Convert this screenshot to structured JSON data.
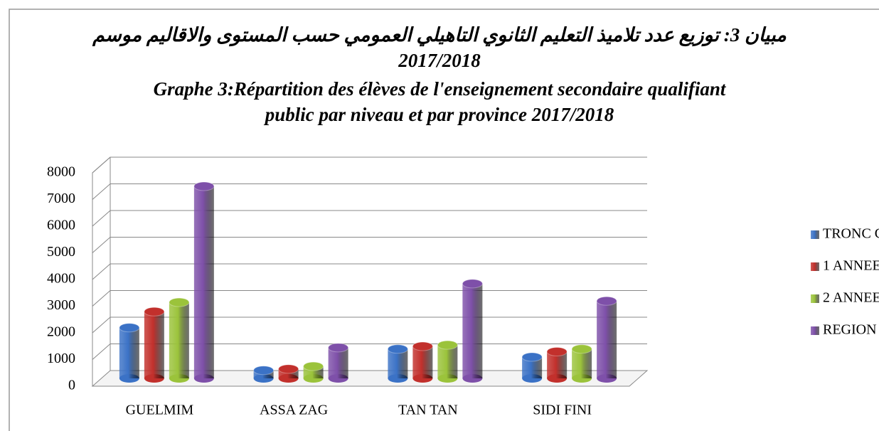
{
  "chart_data": {
    "type": "bar",
    "title": [
      "مبيان 3: توزيع عدد تلاميذ التعليم الثانوي التاهيلي العمومي حسب المستوى والاقاليم موسم",
      "2017/2018",
      "Graphe 3:Répartition des élèves de l'enseignement secondaire qualifiant",
      "public par niveau et par province 2017/2018"
    ],
    "categories": [
      "GUELMIM",
      "ASSA ZAG",
      "TAN TAN",
      "SIDI FINI"
    ],
    "series": [
      {
        "name": "TRONC COMMUN",
        "color": "#3b72c6",
        "values": [
          1900,
          300,
          1100,
          800
        ]
      },
      {
        "name": "1 ANNEE",
        "color": "#c2302c",
        "values": [
          2500,
          350,
          1200,
          1000
        ]
      },
      {
        "name": "2 ANNEE",
        "color": "#9bc33b",
        "values": [
          2850,
          450,
          1250,
          1100
        ]
      },
      {
        "name": "REGION",
        "color": "#7e50a9",
        "values": [
          7200,
          1150,
          3550,
          2900
        ]
      }
    ],
    "ylim": [
      0,
      8000
    ],
    "yticks": [
      0,
      1000,
      2000,
      3000,
      4000,
      5000,
      6000,
      7000,
      8000
    ],
    "grid": true,
    "legend": "right"
  }
}
